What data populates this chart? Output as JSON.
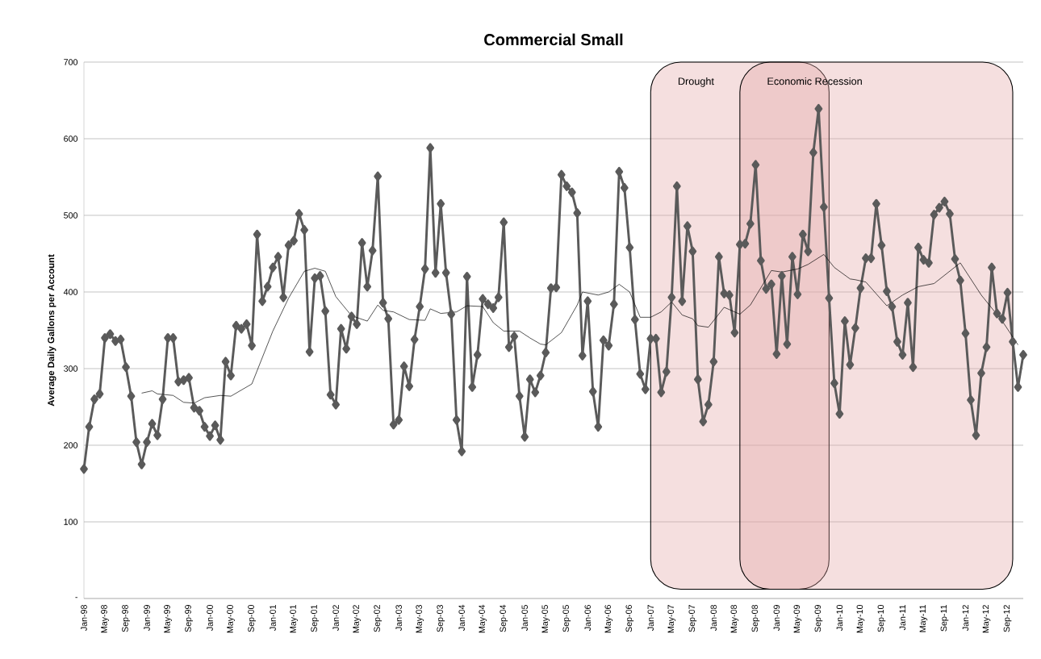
{
  "chart_data": {
    "type": "line",
    "title": "Commercial Small",
    "ylabel": "Average Daily Gallons per Account",
    "x": [
      "1998-01",
      "1998-02",
      "1998-03",
      "1998-04",
      "1998-05",
      "1998-06",
      "1998-07",
      "1998-08",
      "1998-09",
      "1998-10",
      "1998-11",
      "1998-12",
      "1999-01",
      "1999-02",
      "1999-03",
      "1999-04",
      "1999-05",
      "1999-06",
      "1999-07",
      "1999-08",
      "1999-09",
      "1999-10",
      "1999-11",
      "1999-12",
      "2000-01",
      "2000-02",
      "2000-03",
      "2000-04",
      "2000-05",
      "2000-06",
      "2000-07",
      "2000-08",
      "2000-09",
      "2000-10",
      "2000-11",
      "2000-12",
      "2001-01",
      "2001-02",
      "2001-03",
      "2001-04",
      "2001-05",
      "2001-06",
      "2001-07",
      "2001-08",
      "2001-09",
      "2001-10",
      "2001-11",
      "2001-12",
      "2002-01",
      "2002-02",
      "2002-03",
      "2002-04",
      "2002-05",
      "2002-06",
      "2002-07",
      "2002-08",
      "2002-09",
      "2002-10",
      "2002-11",
      "2002-12",
      "2003-01",
      "2003-02",
      "2003-03",
      "2003-04",
      "2003-05",
      "2003-06",
      "2003-07",
      "2003-08",
      "2003-09",
      "2003-10",
      "2003-11",
      "2003-12",
      "2004-01",
      "2004-02",
      "2004-03",
      "2004-04",
      "2004-05",
      "2004-06",
      "2004-07",
      "2004-08",
      "2004-09",
      "2004-10",
      "2004-11",
      "2004-12",
      "2005-01",
      "2005-02",
      "2005-03",
      "2005-04",
      "2005-05",
      "2005-06",
      "2005-07",
      "2005-08",
      "2005-09",
      "2005-10",
      "2005-11",
      "2005-12",
      "2006-01",
      "2006-02",
      "2006-03",
      "2006-04",
      "2006-05",
      "2006-06",
      "2006-07",
      "2006-08",
      "2006-09",
      "2006-10",
      "2006-11",
      "2006-12",
      "2007-01",
      "2007-02",
      "2007-03",
      "2007-04",
      "2007-05",
      "2007-06",
      "2007-07",
      "2007-08",
      "2007-09",
      "2007-10",
      "2007-11",
      "2007-12",
      "2008-01",
      "2008-02",
      "2008-03",
      "2008-04",
      "2008-05",
      "2008-06",
      "2008-07",
      "2008-08",
      "2008-09",
      "2008-10",
      "2008-11",
      "2008-12",
      "2009-01",
      "2009-02",
      "2009-03",
      "2009-04",
      "2009-05",
      "2009-06",
      "2009-07",
      "2009-08",
      "2009-09",
      "2009-10",
      "2009-11",
      "2009-12",
      "2010-01",
      "2010-02",
      "2010-03",
      "2010-04",
      "2010-05",
      "2010-06",
      "2010-07",
      "2010-08",
      "2010-09",
      "2010-10",
      "2010-11",
      "2010-12",
      "2011-01",
      "2011-02",
      "2011-03",
      "2011-04",
      "2011-05",
      "2011-06",
      "2011-07",
      "2011-08",
      "2011-09",
      "2011-10",
      "2011-11",
      "2011-12",
      "2012-01",
      "2012-02",
      "2012-03",
      "2012-04",
      "2012-05",
      "2012-06",
      "2012-07",
      "2012-08",
      "2012-09",
      "2012-10",
      "2012-11",
      "2012-12"
    ],
    "series": [
      {
        "color": "#5a5a5a",
        "marker": "diamond",
        "values": [
          169,
          224,
          260,
          267,
          340,
          345,
          336,
          338,
          302,
          264,
          204,
          175,
          204,
          228,
          213,
          260,
          340,
          340,
          283,
          285,
          288,
          249,
          245,
          224,
          212,
          226,
          207,
          309,
          291,
          356,
          352,
          358,
          330,
          475,
          388,
          407,
          432,
          446,
          393,
          461,
          467,
          502,
          481,
          322,
          418,
          421,
          375,
          266,
          253,
          352,
          326,
          368,
          358,
          464,
          407,
          454,
          551,
          386,
          365,
          227,
          233,
          303,
          277,
          338,
          381,
          430,
          588,
          425,
          515,
          425,
          371,
          233,
          192,
          420,
          276,
          318,
          391,
          384,
          379,
          393,
          491,
          328,
          342,
          264,
          211,
          286,
          269,
          291,
          321,
          405,
          406,
          553,
          538,
          530,
          503,
          317,
          388,
          270,
          224,
          337,
          330,
          384,
          557,
          536,
          458,
          364,
          293,
          273,
          339,
          339,
          269,
          296,
          393,
          538,
          388,
          486,
          453,
          286,
          231,
          253,
          309,
          446,
          398,
          396,
          347,
          462,
          463,
          489,
          566,
          441,
          404,
          410,
          319,
          421,
          332,
          446,
          397,
          475,
          453,
          582,
          639,
          511,
          392,
          281,
          241,
          362,
          305,
          353,
          405,
          444,
          444,
          515,
          461,
          401,
          381,
          335,
          318,
          386,
          302,
          458,
          442,
          438,
          501,
          510,
          518,
          502,
          443,
          415,
          346,
          259,
          213,
          294,
          328,
          432,
          372,
          365,
          399,
          335,
          276,
          318
        ]
      },
      {
        "color": "#000000",
        "marker": "none",
        "x": [
          "1998-12",
          "1999-02",
          "1999-03",
          "1999-06",
          "1999-08",
          "1999-10",
          "1999-12",
          "2000-03",
          "2000-05",
          "2000-09",
          "2001-01",
          "2001-04",
          "2001-07",
          "2001-09",
          "2001-11",
          "2002-01",
          "2002-04",
          "2002-07",
          "2002-09",
          "2002-10",
          "2002-12",
          "2003-03",
          "2003-06",
          "2003-07",
          "2003-09",
          "2003-12",
          "2004-02",
          "2004-05",
          "2004-07",
          "2004-09",
          "2004-12",
          "2005-02",
          "2005-04",
          "2005-05",
          "2005-08",
          "2005-11",
          "2005-12",
          "2006-03",
          "2006-05",
          "2006-07",
          "2006-09",
          "2006-11",
          "2007-01",
          "2007-03",
          "2007-05",
          "2007-07",
          "2007-09",
          "2007-10",
          "2007-12",
          "2008-03",
          "2008-06",
          "2008-08",
          "2008-12",
          "2009-02",
          "2009-05",
          "2009-07",
          "2009-10",
          "2009-12",
          "2010-03",
          "2010-04",
          "2010-06",
          "2010-10",
          "2011-01",
          "2011-04",
          "2011-07",
          "2011-12",
          "2012-04",
          "2012-08",
          "2012-11"
        ],
        "values": [
          268,
          271,
          267,
          265,
          256,
          255,
          262,
          265,
          264,
          280,
          349,
          392,
          427,
          431,
          427,
          394,
          369,
          362,
          383,
          376,
          374,
          364,
          363,
          378,
          372,
          374,
          382,
          381,
          360,
          349,
          349,
          340,
          332,
          331,
          347,
          383,
          400,
          396,
          400,
          410,
          400,
          367,
          367,
          374,
          387,
          370,
          365,
          356,
          354,
          380,
          371,
          383,
          428,
          426,
          430,
          436,
          449,
          432,
          417,
          416,
          413,
          382,
          396,
          407,
          411,
          438,
          396,
          362,
          331
        ]
      }
    ],
    "xlim": [
      "1998-01",
      "2012-12"
    ],
    "xticks": [
      {
        "value": "1998-01",
        "label": "Jan-98"
      },
      {
        "value": "1998-05",
        "label": "May-98"
      },
      {
        "value": "1998-09",
        "label": "Sep-98"
      },
      {
        "value": "1999-01",
        "label": "Jan-99"
      },
      {
        "value": "1999-05",
        "label": "May-99"
      },
      {
        "value": "1999-09",
        "label": "Sep-99"
      },
      {
        "value": "2000-01",
        "label": "Jan-00"
      },
      {
        "value": "2000-05",
        "label": "May-00"
      },
      {
        "value": "2000-09",
        "label": "Sep-00"
      },
      {
        "value": "2001-01",
        "label": "Jan-01"
      },
      {
        "value": "2001-05",
        "label": "May-01"
      },
      {
        "value": "2001-09",
        "label": "Sep-01"
      },
      {
        "value": "2002-01",
        "label": "Jan-02"
      },
      {
        "value": "2002-05",
        "label": "May-02"
      },
      {
        "value": "2002-09",
        "label": "Sep-02"
      },
      {
        "value": "2003-01",
        "label": "Jan-03"
      },
      {
        "value": "2003-05",
        "label": "May-03"
      },
      {
        "value": "2003-09",
        "label": "Sep-03"
      },
      {
        "value": "2004-01",
        "label": "Jan-04"
      },
      {
        "value": "2004-05",
        "label": "May-04"
      },
      {
        "value": "2004-09",
        "label": "Sep-04"
      },
      {
        "value": "2005-01",
        "label": "Jan-05"
      },
      {
        "value": "2005-05",
        "label": "May-05"
      },
      {
        "value": "2005-09",
        "label": "Sep-05"
      },
      {
        "value": "2006-01",
        "label": "Jan-06"
      },
      {
        "value": "2006-05",
        "label": "May-06"
      },
      {
        "value": "2006-09",
        "label": "Sep-06"
      },
      {
        "value": "2007-01",
        "label": "Jan-07"
      },
      {
        "value": "2007-05",
        "label": "May-07"
      },
      {
        "value": "2007-09",
        "label": "Sep-07"
      },
      {
        "value": "2008-01",
        "label": "Jan-08"
      },
      {
        "value": "2008-05",
        "label": "May-08"
      },
      {
        "value": "2008-09",
        "label": "Sep-08"
      },
      {
        "value": "2009-01",
        "label": "Jan-09"
      },
      {
        "value": "2009-05",
        "label": "May-09"
      },
      {
        "value": "2009-09",
        "label": "Sep-09"
      },
      {
        "value": "2010-01",
        "label": "Jan-10"
      },
      {
        "value": "2010-05",
        "label": "May-10"
      },
      {
        "value": "2010-09",
        "label": "Sep-10"
      },
      {
        "value": "2011-01",
        "label": "Jan-11"
      },
      {
        "value": "2011-05",
        "label": "May-11"
      },
      {
        "value": "2011-09",
        "label": "Sep-11"
      },
      {
        "value": "2012-01",
        "label": "Jan-12"
      },
      {
        "value": "2012-05",
        "label": "May-12"
      },
      {
        "value": "2012-09",
        "label": "Sep-12"
      }
    ],
    "ylim": [
      0,
      700
    ],
    "yticks": [
      {
        "value": 0,
        "label": "-"
      },
      100,
      200,
      300,
      400,
      500,
      600,
      700
    ],
    "grid": "y",
    "bands": [
      {
        "axis": "x",
        "from": "2007-01",
        "to": "2009-11",
        "label": "Drought",
        "color": "#e3a3a3"
      },
      {
        "axis": "x",
        "from": "2008-06",
        "to": "2012-10",
        "label": "Economic Recession",
        "color": "#e3a3a3"
      }
    ]
  }
}
